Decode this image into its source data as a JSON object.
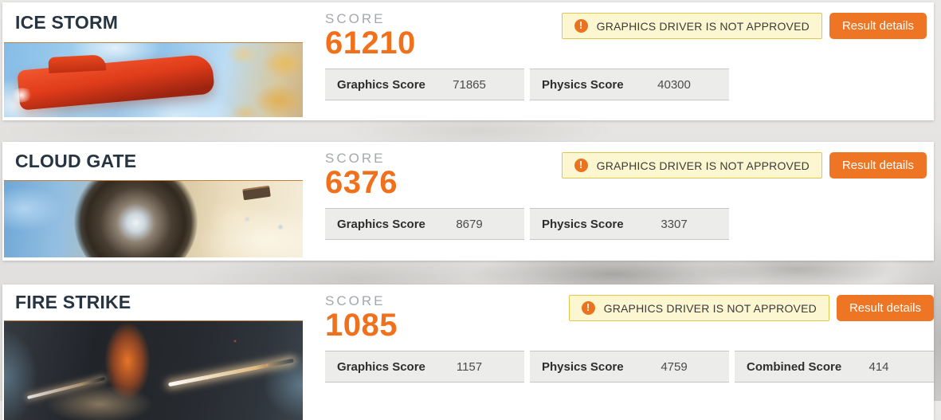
{
  "colors": {
    "accent_orange": "#ee7523",
    "score_orange": "#f0701b",
    "title_dark": "#273441",
    "score_caption_gray": "#a4a8ac",
    "warning_bg": "#fcf7d0",
    "warning_border": "#e2c74a",
    "warning_icon_bg": "#e9731e",
    "table_cell_bg": "#ececea",
    "table_cell_border": "#c6c6c5",
    "page_bg": "#e7e6e4"
  },
  "icons": {
    "warning_glyph": "!"
  },
  "sections": [
    {
      "id": "ice-storm",
      "title": "ICE STORM",
      "score_caption": "SCORE",
      "score": "61210",
      "warning": "GRAPHICS DRIVER IS NOT APPROVED",
      "button_label": "Result details",
      "scores": [
        {
          "label": "Graphics Score",
          "value": "71865"
        },
        {
          "label": "Physics Score",
          "value": "40300"
        }
      ]
    },
    {
      "id": "cloud-gate",
      "title": "CLOUD GATE",
      "score_caption": "SCORE",
      "score": "6376",
      "warning": "GRAPHICS DRIVER IS NOT APPROVED",
      "button_label": "Result details",
      "scores": [
        {
          "label": "Graphics Score",
          "value": "8679"
        },
        {
          "label": "Physics Score",
          "value": "3307"
        }
      ]
    },
    {
      "id": "fire-strike",
      "title": "FIRE STRIKE",
      "score_caption": "SCORE",
      "score": "1085",
      "warning": "GRAPHICS DRIVER IS NOT APPROVED",
      "button_label": "Result details",
      "scores": [
        {
          "label": "Graphics Score",
          "value": "1157"
        },
        {
          "label": "Physics Score",
          "value": "4759"
        },
        {
          "label": "Combined Score",
          "value": "414"
        }
      ]
    }
  ]
}
